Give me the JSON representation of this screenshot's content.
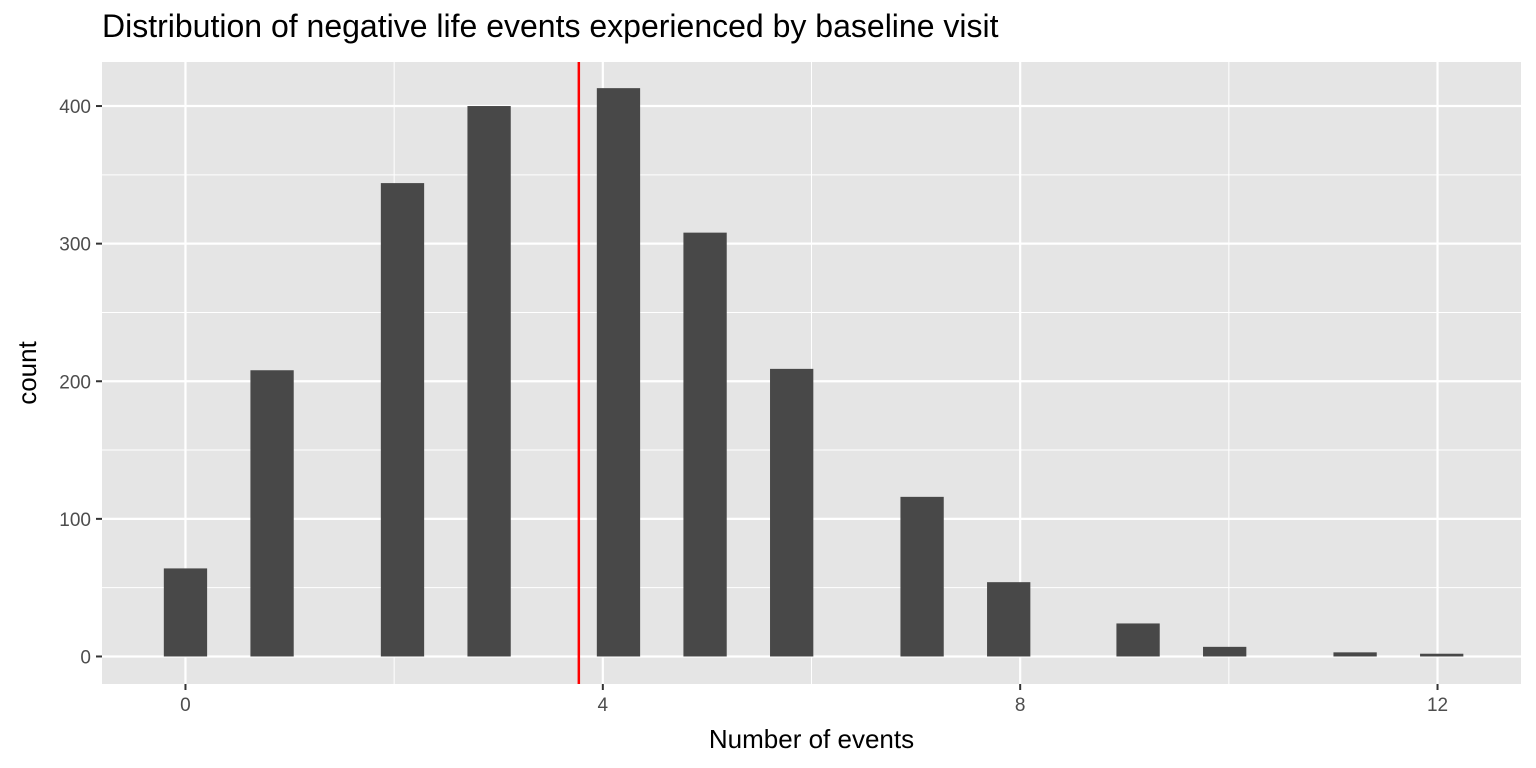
{
  "chart_data": {
    "type": "bar",
    "title": "Distribution of negative life events experienced by baseline visit",
    "xlabel": "Number of events",
    "ylabel": "count",
    "x": [
      0,
      0.83,
      2.08,
      2.91,
      4.15,
      4.98,
      5.81,
      7.06,
      7.89,
      9.13,
      9.96,
      11.21,
      12.04
    ],
    "values": [
      64,
      208,
      344,
      400,
      413,
      308,
      209,
      116,
      54,
      24,
      7,
      3,
      2
    ],
    "bin_width": 0.415,
    "xlim": [
      -0.8,
      12.8
    ],
    "ylim": [
      -20,
      432
    ],
    "x_ticks": [
      0,
      4,
      8,
      12
    ],
    "x_tick_labels": [
      "0",
      "4",
      "8",
      "12"
    ],
    "y_ticks": [
      0,
      100,
      200,
      300,
      400
    ],
    "y_tick_labels": [
      "0",
      "100",
      "200",
      "300",
      "400"
    ],
    "reference_line": {
      "x": 3.77,
      "color": "#ff0000"
    },
    "grid": true,
    "colors": {
      "panel": "#e5e5e5",
      "grid": "#ffffff",
      "bar": "#484848",
      "tick_text": "#4d4d4d"
    }
  }
}
